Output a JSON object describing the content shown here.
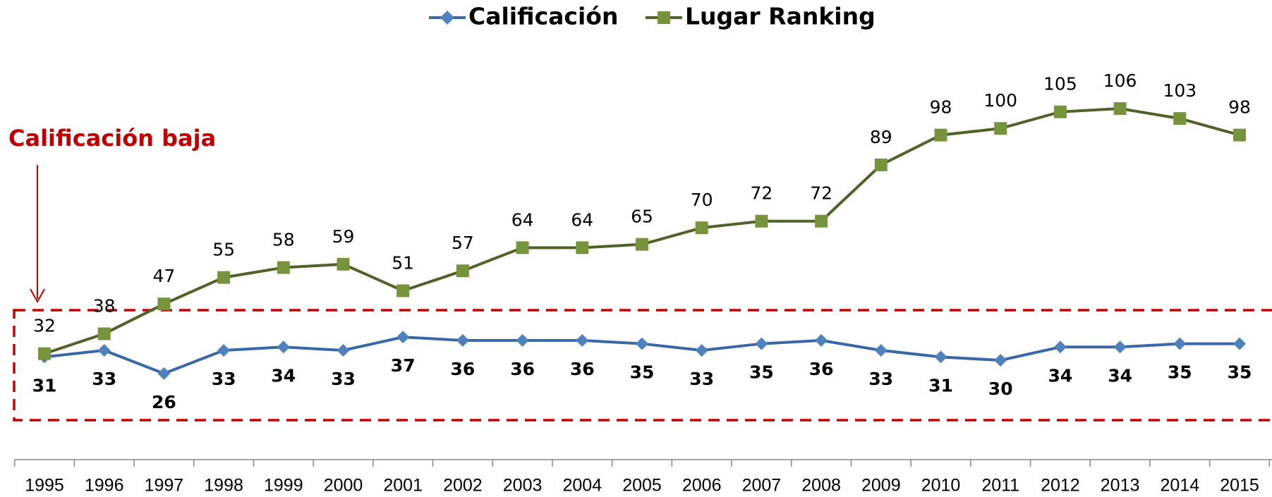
{
  "chart_data": {
    "type": "line",
    "categories": [
      "1995",
      "1996",
      "1997",
      "1998",
      "1999",
      "2000",
      "2001",
      "2002",
      "2003",
      "2004",
      "2005",
      "2006",
      "2007",
      "2008",
      "2009",
      "2010",
      "2011",
      "2012",
      "2013",
      "2014",
      "2015"
    ],
    "series": [
      {
        "name": "Calificación",
        "color": "#3a67a5",
        "marker_color": "#4f81bd",
        "marker": "diamond",
        "values": [
          31,
          33,
          26,
          33,
          34,
          33,
          37,
          36,
          36,
          36,
          35,
          33,
          35,
          36,
          33,
          31,
          30,
          34,
          34,
          35,
          35
        ]
      },
      {
        "name": "Lugar Ranking",
        "color": "#4f6228",
        "marker_color": "#77933c",
        "marker": "square",
        "values": [
          32,
          38,
          47,
          55,
          58,
          59,
          51,
          57,
          64,
          64,
          65,
          70,
          72,
          72,
          89,
          98,
          100,
          105,
          106,
          103,
          98
        ]
      }
    ],
    "annotation": "Calificación baja",
    "legend": "top"
  }
}
